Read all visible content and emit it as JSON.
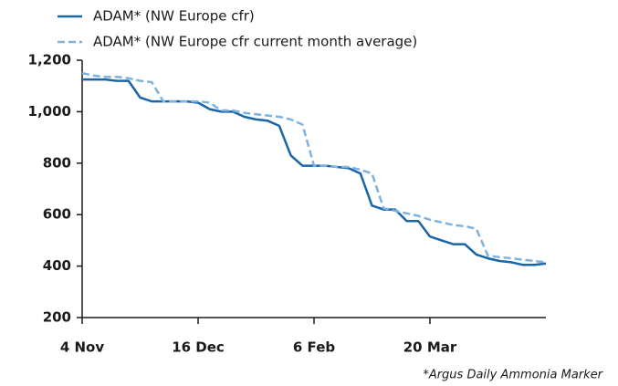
{
  "chart_data": {
    "type": "line",
    "categories": [
      "4 Nov",
      null,
      null,
      null,
      null,
      null,
      null,
      null,
      null,
      null,
      "16 Dec",
      null,
      null,
      null,
      null,
      null,
      null,
      null,
      null,
      null,
      "6 Feb",
      null,
      null,
      null,
      null,
      null,
      null,
      null,
      null,
      null,
      "20 Mar",
      null,
      null,
      null,
      null,
      null,
      null,
      null,
      null,
      null,
      null
    ],
    "series": [
      {
        "name": "ADAM* (NW Europe cfr)",
        "color": "#1a64a8",
        "dash": false,
        "values": [
          1125,
          1125,
          1125,
          1120,
          1120,
          1055,
          1040,
          1040,
          1040,
          1040,
          1035,
          1010,
          1000,
          1000,
          980,
          970,
          965,
          945,
          830,
          790,
          790,
          790,
          785,
          780,
          760,
          635,
          620,
          620,
          575,
          575,
          515,
          500,
          485,
          485,
          445,
          430,
          420,
          415,
          405,
          405,
          410
        ]
      },
      {
        "name": "ADAM* (NW Europe cfr current month average)",
        "color": "#7fb2dd",
        "dash": true,
        "values": [
          1150,
          1140,
          1135,
          1135,
          1130,
          1120,
          1115,
          1040,
          1040,
          1040,
          1040,
          1035,
          1005,
          1005,
          995,
          990,
          985,
          980,
          970,
          950,
          790,
          790,
          785,
          785,
          775,
          760,
          625,
          615,
          605,
          595,
          580,
          570,
          560,
          555,
          545,
          440,
          435,
          430,
          425,
          420,
          415
        ]
      }
    ],
    "ylim": [
      200,
      1200
    ],
    "yticks": [
      {
        "value": 200,
        "label": "200"
      },
      {
        "value": 400,
        "label": "400"
      },
      {
        "value": 600,
        "label": "600"
      },
      {
        "value": 800,
        "label": "800"
      },
      {
        "value": 1000,
        "label": "1,000"
      },
      {
        "value": 1200,
        "label": "1,200"
      }
    ],
    "legend": "top-left",
    "grid": false,
    "note": "*Argus Daily Ammonia Marker"
  }
}
